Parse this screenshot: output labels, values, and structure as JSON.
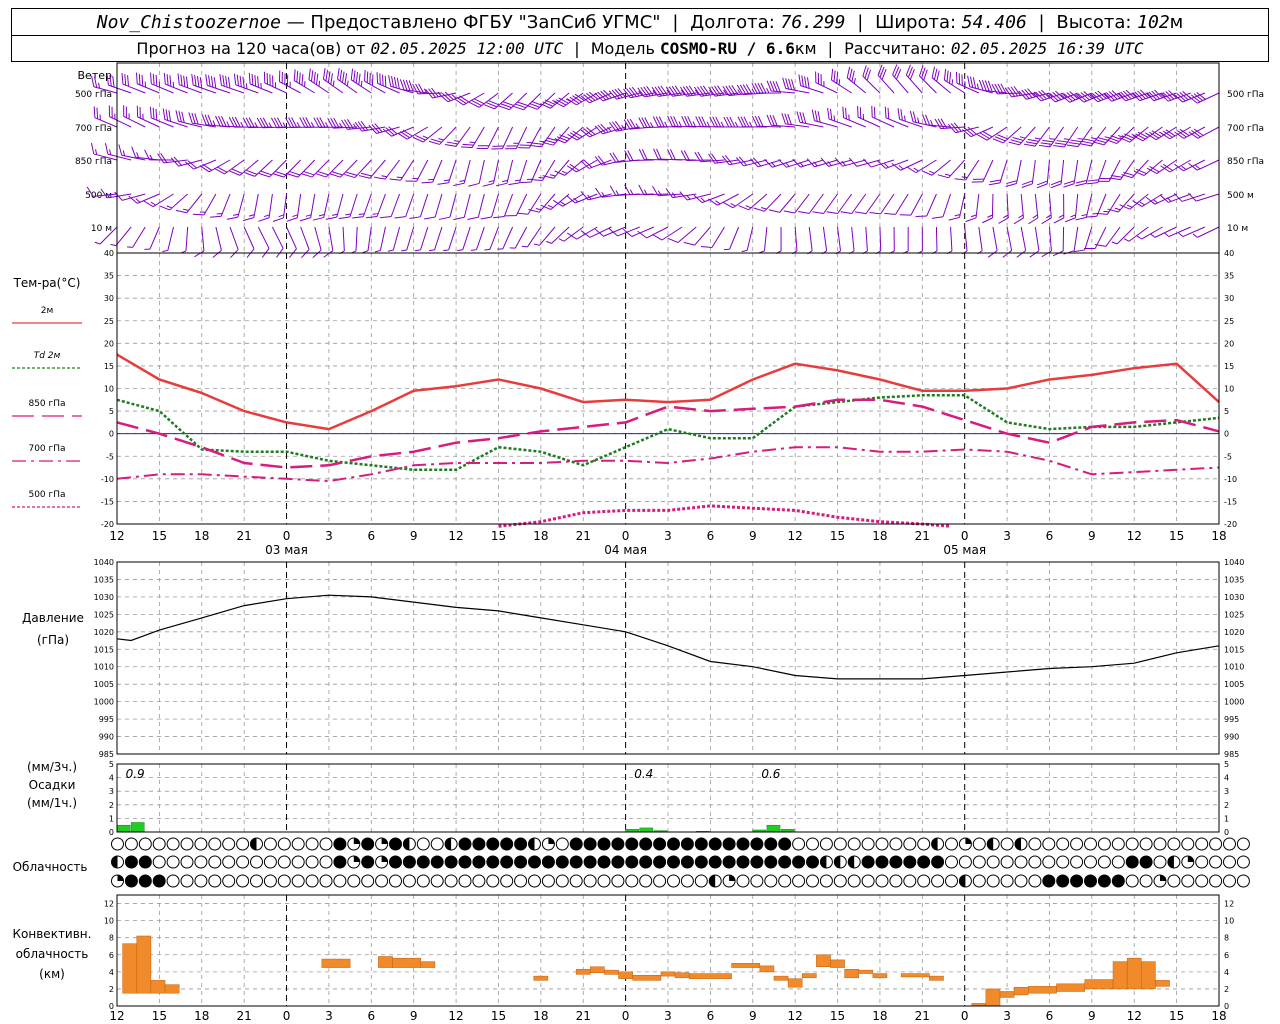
{
  "header": {
    "station": "Nov_Chistoozernoe",
    "provided_by": "— Предоставлено ФГБУ \"ЗапСиб УГМС\"",
    "lon_label": "Долгота:",
    "lon": "76.299",
    "lat_label": "Широта:",
    "lat": "54.406",
    "alt_label": "Высота:",
    "alt": "102",
    "alt_unit": "м",
    "forecast_label": "Прогноз на 120 часа(ов) от",
    "forecast_start": "02.05.2025 12:00 UTC",
    "model_label": "Модель",
    "model": "COSMO-RU / 6.6",
    "model_unit": "км",
    "calc_label": "Рассчитано:",
    "calc_time": "02.05.2025 16:39 UTC"
  },
  "colors": {
    "wind": "#8000c0",
    "t2m": "#e83c3c",
    "td2m": "#1f7d1f",
    "t850": "#d81b7e",
    "t700": "#d81b7e",
    "t500": "#d81b7e",
    "pressure": "#000000",
    "precip": "#22cc22",
    "conv": "#f08a2a",
    "zero_line": "#2222cc",
    "grid": "#999999"
  },
  "chart_data": [
    {
      "type": "wind-barbs",
      "title": "Ветер",
      "levels": [
        "500 гПа",
        "700 гПа",
        "850 гПа",
        "500 м",
        "10 м"
      ],
      "note": "wind barbs at every hour for each level"
    },
    {
      "type": "line",
      "title": "Тем-ра(°С)",
      "ylim": [
        -20,
        40
      ],
      "yticks": [
        -20,
        -15,
        -10,
        -5,
        0,
        5,
        10,
        15,
        20,
        25,
        30,
        35,
        40
      ],
      "x_hour_labels": [
        "12",
        "15",
        "18",
        "21",
        "0",
        "3",
        "6",
        "9",
        "12",
        "15",
        "18",
        "21",
        "0",
        "3",
        "6",
        "9",
        "12",
        "15",
        "18",
        "21",
        "0",
        "3",
        "6",
        "9",
        "12",
        "15",
        "18"
      ],
      "day_labels": [
        {
          "text": "03 мая",
          "h": 12
        },
        {
          "text": "04 мая",
          "h": 36
        },
        {
          "text": "05 мая",
          "h": 60
        }
      ],
      "series": [
        {
          "name": "2м",
          "style": "solid",
          "x": [
            0,
            3,
            6,
            9,
            12,
            15,
            18,
            21,
            24,
            27,
            30,
            33,
            36,
            39,
            42,
            45,
            48,
            51,
            54,
            57,
            60,
            63,
            66,
            69,
            72,
            75,
            78
          ],
          "values": [
            17.5,
            12,
            9,
            5,
            2.5,
            1,
            5,
            9.5,
            10.5,
            12,
            10,
            7,
            7.5,
            7,
            7.5,
            12,
            15.5,
            14,
            12,
            9.5,
            9.5,
            10,
            12,
            13,
            14.5,
            15.5,
            7
          ]
        },
        {
          "name": "Td 2м",
          "style": "dotted",
          "x": [
            0,
            3,
            6,
            9,
            12,
            15,
            18,
            21,
            24,
            27,
            30,
            33,
            36,
            39,
            42,
            45,
            48,
            51,
            54,
            57,
            60,
            63,
            66,
            69,
            72,
            75,
            78
          ],
          "values": [
            7.5,
            5,
            -3.5,
            -4,
            -4,
            -6,
            -7,
            -8,
            -8,
            -3,
            -4,
            -7,
            -3,
            1,
            -1,
            -1,
            6,
            7,
            8,
            8.5,
            8.5,
            2.5,
            1,
            1.5,
            1.5,
            2.5,
            3.5
          ]
        },
        {
          "name": "850 гПа",
          "style": "long-dash",
          "x": [
            0,
            3,
            6,
            9,
            12,
            15,
            18,
            21,
            24,
            27,
            30,
            33,
            36,
            39,
            42,
            45,
            48,
            51,
            54,
            57,
            60,
            63,
            66,
            69,
            72,
            75,
            78
          ],
          "values": [
            2.5,
            0,
            -3,
            -6.5,
            -7.5,
            -7,
            -5,
            -4,
            -2,
            -1,
            0.5,
            1.5,
            2.5,
            6,
            5,
            5.5,
            6,
            7.5,
            7.5,
            6,
            3,
            0,
            -2,
            1.5,
            2.5,
            3,
            0.5
          ]
        },
        {
          "name": "700 гПа",
          "style": "dash-dot",
          "x": [
            0,
            3,
            6,
            9,
            12,
            15,
            18,
            21,
            24,
            27,
            30,
            33,
            36,
            39,
            42,
            45,
            48,
            51,
            54,
            57,
            60,
            63,
            66,
            69,
            72,
            75,
            78
          ],
          "values": [
            -10,
            -9,
            -9,
            -9.5,
            -10,
            -10.5,
            -9,
            -7,
            -6.5,
            -6.5,
            -6.5,
            -6,
            -6,
            -6.5,
            -5.5,
            -4,
            -3,
            -3,
            -4,
            -4,
            -3.5,
            -4,
            -6,
            -9,
            -8.5,
            -8,
            -7.5
          ]
        },
        {
          "name": "500 гПа",
          "style": "dotted",
          "x": [
            27,
            30,
            33,
            36,
            39,
            42,
            45,
            48,
            51,
            54,
            57,
            59
          ],
          "values": [
            -20.5,
            -19.5,
            -17.5,
            -17,
            -17,
            -16,
            -16.5,
            -17,
            -18.5,
            -19.5,
            -20,
            -20.5
          ]
        }
      ]
    },
    {
      "type": "line",
      "title": "Давление",
      "ylabel": "(гПа)",
      "ylim": [
        985,
        1040
      ],
      "yticks": [
        985,
        990,
        995,
        1000,
        1005,
        1010,
        1015,
        1020,
        1025,
        1030,
        1035,
        1040
      ],
      "x": [
        0,
        1,
        3,
        6,
        9,
        12,
        15,
        18,
        21,
        24,
        27,
        30,
        33,
        36,
        39,
        42,
        45,
        48,
        51,
        54,
        57,
        60,
        63,
        66,
        69,
        72,
        75,
        78
      ],
      "values": [
        1018,
        1017.5,
        1020.5,
        1024,
        1027.5,
        1029.5,
        1030.5,
        1030,
        1028.5,
        1027,
        1026,
        1024,
        1022,
        1020,
        1016,
        1011.5,
        1010,
        1007.5,
        1006.5,
        1006.5,
        1006.5,
        1007.5,
        1008.5,
        1009.5,
        1010,
        1011,
        1014,
        1016
      ]
    },
    {
      "type": "bar",
      "title": "Осадки",
      "ylabel_top": "(мм/3ч.)",
      "ylabel_bottom": "(мм/1ч.)",
      "ylim": [
        0,
        5
      ],
      "yticks": [
        0,
        1,
        2,
        3,
        4,
        5
      ],
      "totals": [
        {
          "h": 1,
          "text": "0.9"
        },
        {
          "h": 37,
          "text": "0.4"
        },
        {
          "h": 46,
          "text": "0.6"
        }
      ],
      "x": [
        0,
        1,
        36,
        37,
        38,
        41,
        45,
        46,
        47
      ],
      "values": [
        0.5,
        0.7,
        0.2,
        0.3,
        0.1,
        0.05,
        0.15,
        0.5,
        0.2
      ]
    },
    {
      "type": "symbols",
      "title": "Облачность",
      "rows": [
        "CCCCCCCCCCHCCCCCFQFQFHCCHFFFFFHQCFFFFFFFFFFFFFFFFCCCCCCCCCCHCQCHCHCCCCCCCCCCCCCCCC",
        "HFFCCCCCCCCCCCCCFQFQFFFFFFFFFFFFFFFFFFFFFFFFFFFFFFFHHHFFFFFFCCCCCCCCCCCCCFFCHQCCCC",
        "QFFFCCCCCCCCCCCCCCCCCCCCCCCCCCCCCCCCCCCCCCCHQCCCCCCCCCCCCCCCCHCCCCCFFFFFFCCQCCCCCC"
      ]
    },
    {
      "type": "bar",
      "title": "Конвективн. облачность",
      "ylabel": "(км)",
      "ylim": [
        0,
        13
      ],
      "yticks": [
        0,
        2,
        4,
        6,
        8,
        10,
        12
      ],
      "bars": [
        {
          "x0": 0.4,
          "x1": 1.4,
          "y0": 1.5,
          "y1": 7.3
        },
        {
          "x0": 1.4,
          "x1": 2.4,
          "y0": 1.5,
          "y1": 8.2
        },
        {
          "x0": 2.4,
          "x1": 3.4,
          "y0": 1.5,
          "y1": 3
        },
        {
          "x0": 3.4,
          "x1": 4.4,
          "y0": 1.5,
          "y1": 2.5
        },
        {
          "x0": 14.5,
          "x1": 16.5,
          "y0": 4.5,
          "y1": 5.5
        },
        {
          "x0": 18.5,
          "x1": 19.5,
          "y0": 4.5,
          "y1": 5.8
        },
        {
          "x0": 19.5,
          "x1": 21.5,
          "y0": 4.5,
          "y1": 5.6
        },
        {
          "x0": 21.5,
          "x1": 22.5,
          "y0": 4.5,
          "y1": 5.2
        },
        {
          "x0": 29.5,
          "x1": 30.5,
          "y0": 3,
          "y1": 3.5
        },
        {
          "x0": 32.5,
          "x1": 33.5,
          "y0": 3.7,
          "y1": 4.3
        },
        {
          "x0": 33.5,
          "x1": 34.5,
          "y0": 3.9,
          "y1": 4.6
        },
        {
          "x0": 34.5,
          "x1": 35.5,
          "y0": 3.7,
          "y1": 4.2
        },
        {
          "x0": 35.5,
          "x1": 36.5,
          "y0": 3.2,
          "y1": 4
        },
        {
          "x0": 36.5,
          "x1": 38.5,
          "y0": 3,
          "y1": 3.6
        },
        {
          "x0": 38.5,
          "x1": 39.5,
          "y0": 3.5,
          "y1": 4
        },
        {
          "x0": 39.5,
          "x1": 40.5,
          "y0": 3.3,
          "y1": 3.9
        },
        {
          "x0": 40.5,
          "x1": 43.5,
          "y0": 3.2,
          "y1": 3.8
        },
        {
          "x0": 43.5,
          "x1": 45.5,
          "y0": 4.5,
          "y1": 5
        },
        {
          "x0": 45.5,
          "x1": 46.5,
          "y0": 4,
          "y1": 4.7
        },
        {
          "x0": 46.5,
          "x1": 47.5,
          "y0": 3,
          "y1": 3.5
        },
        {
          "x0": 47.5,
          "x1": 48.5,
          "y0": 2.2,
          "y1": 3.2
        },
        {
          "x0": 48.5,
          "x1": 49.5,
          "y0": 3.3,
          "y1": 3.8
        },
        {
          "x0": 49.5,
          "x1": 50.5,
          "y0": 4.6,
          "y1": 6
        },
        {
          "x0": 50.5,
          "x1": 51.5,
          "y0": 4.5,
          "y1": 5.4
        },
        {
          "x0": 51.5,
          "x1": 52.5,
          "y0": 3.3,
          "y1": 4.3
        },
        {
          "x0": 52.5,
          "x1": 53.5,
          "y0": 3.8,
          "y1": 4.2
        },
        {
          "x0": 53.5,
          "x1": 54.5,
          "y0": 3.3,
          "y1": 3.8
        },
        {
          "x0": 55.5,
          "x1": 57.5,
          "y0": 3.4,
          "y1": 3.8
        },
        {
          "x0": 57.5,
          "x1": 58.5,
          "y0": 3,
          "y1": 3.5
        },
        {
          "x0": 60.5,
          "x1": 61.5,
          "y0": 0,
          "y1": 0.3
        },
        {
          "x0": 61.5,
          "x1": 62.5,
          "y0": 0,
          "y1": 2
        },
        {
          "x0": 62.5,
          "x1": 63.5,
          "y0": 1,
          "y1": 1.7
        },
        {
          "x0": 63.5,
          "x1": 64.5,
          "y0": 1.3,
          "y1": 2.2
        },
        {
          "x0": 64.5,
          "x1": 66.5,
          "y0": 1.5,
          "y1": 2.3
        },
        {
          "x0": 66.5,
          "x1": 68.5,
          "y0": 1.7,
          "y1": 2.6
        },
        {
          "x0": 68.5,
          "x1": 70.5,
          "y0": 2,
          "y1": 3.1
        },
        {
          "x0": 70.5,
          "x1": 71.5,
          "y0": 2,
          "y1": 5.2
        },
        {
          "x0": 71.5,
          "x1": 72.5,
          "y0": 2,
          "y1": 5.6
        },
        {
          "x0": 72.5,
          "x1": 73.5,
          "y0": 2,
          "y1": 5.2
        },
        {
          "x0": 73.5,
          "x1": 74.5,
          "y0": 2.3,
          "y1": 3
        }
      ]
    }
  ]
}
